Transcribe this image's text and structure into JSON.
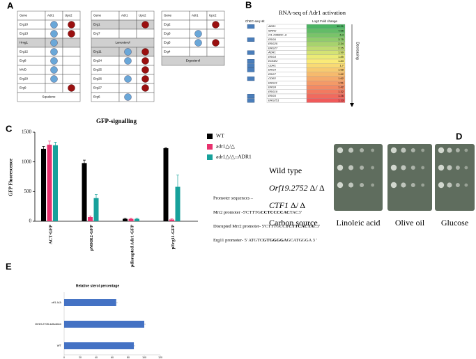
{
  "panel_labels": [
    "A",
    "B",
    "C",
    "D",
    "E"
  ],
  "panel_a": {
    "header": [
      "Gene",
      "Adr1",
      "Upc2"
    ],
    "tables": [
      {
        "rows": [
          {
            "gene": "Erg10",
            "green": true,
            "gray": false,
            "adr1": true,
            "upc2": true
          },
          {
            "gene": "Erg13",
            "green": true,
            "gray": false,
            "adr1": true,
            "upc2": true
          },
          {
            "gene": "Hmg1",
            "green": false,
            "gray": true,
            "adr1": true,
            "upc2": false
          },
          {
            "gene": "Erg12",
            "green": false,
            "gray": false,
            "adr1": true,
            "upc2": false
          },
          {
            "gene": "Erg8",
            "green": false,
            "gray": false,
            "adr1": true,
            "upc2": false
          },
          {
            "gene": "MVD",
            "green": false,
            "gray": false,
            "adr1": true,
            "upc2": false
          },
          {
            "gene": "Erg20",
            "green": false,
            "gray": false,
            "adr1": true,
            "upc2": false
          },
          {
            "gene": "Erg9",
            "green": false,
            "gray": false,
            "adr1": false,
            "upc2": true
          }
        ],
        "footer": "Squalene",
        "footer_gray": false
      },
      {
        "rows": [
          {
            "gene": "Erg1",
            "green": false,
            "gray": true,
            "adr1": false,
            "upc2": true
          },
          {
            "gene": "Erg7",
            "green": false,
            "gray": false,
            "adr1": false,
            "upc2": false
          }
        ],
        "middle": "Lanosterol",
        "rows2": [
          {
            "gene": "Erg11",
            "green": true,
            "gray": true,
            "adr1": true,
            "upc2": true
          },
          {
            "gene": "Erg24",
            "green": false,
            "gray": false,
            "adr1": true,
            "upc2": true
          },
          {
            "gene": "Erg25",
            "green": false,
            "gray": false,
            "adr1": false,
            "upc2": true
          },
          {
            "gene": "Erg26",
            "green": true,
            "gray": false,
            "adr1": true,
            "upc2": true
          },
          {
            "gene": "Erg27",
            "green": false,
            "gray": false,
            "adr1": false,
            "upc2": true
          },
          {
            "gene": "Erg6",
            "green": true,
            "gray": false,
            "adr1": true,
            "upc2": false
          }
        ]
      },
      {
        "rows": [
          {
            "gene": "Erg2",
            "green": false,
            "gray": false,
            "adr1": false,
            "upc2": true
          },
          {
            "gene": "Erg3",
            "green": true,
            "gray": false,
            "adr1": true,
            "upc2": false
          },
          {
            "gene": "Erg5",
            "green": true,
            "gray": false,
            "adr1": true,
            "upc2": true
          },
          {
            "gene": "Erg4",
            "green": false,
            "gray": false,
            "adr1": false,
            "upc2": false
          }
        ],
        "footer": "Ergosterol",
        "footer_gray": true
      }
    ]
  },
  "panel_b": {
    "title": "RNA-seq of Adr1 activation",
    "chec_label": "ChEC-seq Hit",
    "value_header": "Log2 Fold change",
    "arrow_label": "Decreasing",
    "rows": [
      {
        "gene": "ADR1",
        "value": 10.21,
        "chec": true
      },
      {
        "gene": "MRR2",
        "value": 7.55,
        "chec": false
      },
      {
        "gene": "C3_03460C_A",
        "value": 6.4,
        "chec": false
      },
      {
        "gene": "ERG6",
        "value": 3.75,
        "chec": true
      },
      {
        "gene": "ERG25",
        "value": 2.34,
        "chec": false
      },
      {
        "gene": "ERG27",
        "value": 2.25,
        "chec": false
      },
      {
        "gene": "ADR1",
        "value": 1.99,
        "chec": true
      },
      {
        "gene": "ERG4",
        "value": 1.85,
        "chec": false
      },
      {
        "gene": "ECM22",
        "value": 1.83,
        "chec": true
      },
      {
        "gene": "CDR1",
        "value": 1.7,
        "chec": true
      },
      {
        "gene": "ERG3",
        "value": 1.68,
        "chec": true
      },
      {
        "gene": "ERG7",
        "value": 1.62,
        "chec": false
      },
      {
        "gene": "CDR2",
        "value": 1.62,
        "chec": true
      },
      {
        "gene": "ERG11",
        "value": 1.51,
        "chec": false
      },
      {
        "gene": "ERG9",
        "value": 1.42,
        "chec": false
      },
      {
        "gene": "ERG10",
        "value": 1.32,
        "chec": false
      },
      {
        "gene": "ERG5",
        "value": 1.26,
        "chec": true
      },
      {
        "gene": "ERG251",
        "value": 1.13,
        "chec": true
      }
    ]
  },
  "chart_data": [
    {
      "type": "bar",
      "title": "GFP-signalling",
      "y_label": "GFP Fluorescence",
      "categories": [
        "ACT-GFP",
        "pMRR2-GFP",
        "pdisrupted Adr1-GFP",
        "pErg11-GFP"
      ],
      "series": [
        {
          "name": "WT",
          "color": "#000000",
          "values": [
            1220,
            980,
            40,
            1230
          ],
          "errors": [
            40,
            50,
            10,
            10
          ]
        },
        {
          "name": "adr1△/△",
          "color": "#e8326e",
          "values": [
            1290,
            70,
            40,
            30
          ],
          "errors": [
            60,
            20,
            15,
            10
          ]
        },
        {
          "name": "adr1△/△::ADR1",
          "color": "#17a19b",
          "values": [
            1280,
            390,
            40,
            580
          ],
          "errors": [
            50,
            60,
            15,
            200
          ]
        }
      ],
      "ylim": [
        0,
        1500
      ],
      "yticks": [
        0,
        500,
        1000,
        1500
      ]
    },
    {
      "type": "hbar",
      "title": "Relative sterol percentage",
      "categories": [
        "ctf1 Δ/Δ",
        "Orf19.2705 activation",
        "WT"
      ],
      "values": [
        65,
        100,
        87
      ],
      "color": "#4472c4",
      "xlim": [
        0,
        120
      ],
      "xticks": [
        0,
        20,
        40,
        60,
        80,
        100,
        120
      ]
    }
  ],
  "promoters": {
    "heading": "Promoter sequences –",
    "lines": [
      [
        "Mrr2 promoter -5'CTTTG",
        "CCTCCCCAC",
        "TAC3'"
      ],
      [
        "Disrupted Mrr2 promoter- 5'CTTTGCC",
        "TCTTCACTA",
        "C3'"
      ],
      [
        "Erg11 promoter- 5' ATGTC",
        "GTGGGGA",
        "GCATGGGA 3 '"
      ]
    ]
  },
  "panel_d": {
    "strains": [
      [
        "Wild type",
        ""
      ],
      [
        "Orf19.2752",
        " Δ/ Δ"
      ],
      [
        "CTF1",
        " Δ/ Δ"
      ]
    ],
    "carbon_label": "Carbon source",
    "carbon_sources": [
      "Linoleic acid",
      "Olive oil",
      "Glucose"
    ]
  }
}
